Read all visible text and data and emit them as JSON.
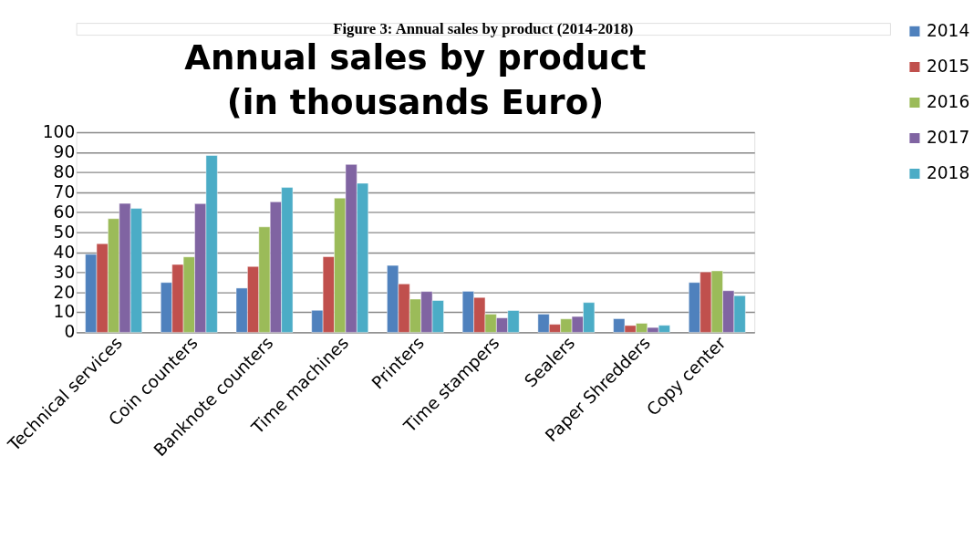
{
  "chart_data": {
    "type": "bar",
    "title": "Annual sales by product\n(in thousands Euro)",
    "annotations": [
      "Figure 3: Annual sales by product (2014-2018)"
    ],
    "categories": [
      "Technical services",
      "Coin counters",
      "Banknote counters",
      "Time machines",
      "Printers",
      "Time stampers",
      "Sealers",
      "Paper Shredders",
      "Copy center"
    ],
    "series": [
      {
        "name": "2014",
        "color": "#4f81bd",
        "values": [
          39,
          24.9,
          22.1,
          11,
          33.4,
          20.5,
          9.1,
          6.8,
          24.9
        ]
      },
      {
        "name": "2015",
        "color": "#c0504d",
        "values": [
          44.3,
          33.9,
          32.9,
          37.8,
          24.2,
          17.4,
          4,
          3.4,
          30.2
        ]
      },
      {
        "name": "2016",
        "color": "#9bbb59",
        "values": [
          56.8,
          37.7,
          52.7,
          67.1,
          16.6,
          9.1,
          6.7,
          4.5,
          30.7
        ]
      },
      {
        "name": "2017",
        "color": "#8064a2",
        "values": [
          64.4,
          64.3,
          65.2,
          83.9,
          20.4,
          7.2,
          7.9,
          2.4,
          20.8
        ]
      },
      {
        "name": "2018",
        "color": "#4bacc6",
        "values": [
          61.9,
          88.4,
          72.4,
          74.5,
          15.9,
          10.9,
          14.9,
          3.5,
          18.3
        ]
      }
    ],
    "ylim": [
      0,
      100
    ],
    "yticks": [
      0,
      10,
      20,
      30,
      40,
      50,
      60,
      70,
      80,
      90,
      100
    ],
    "grid": "y",
    "legend": "right"
  }
}
